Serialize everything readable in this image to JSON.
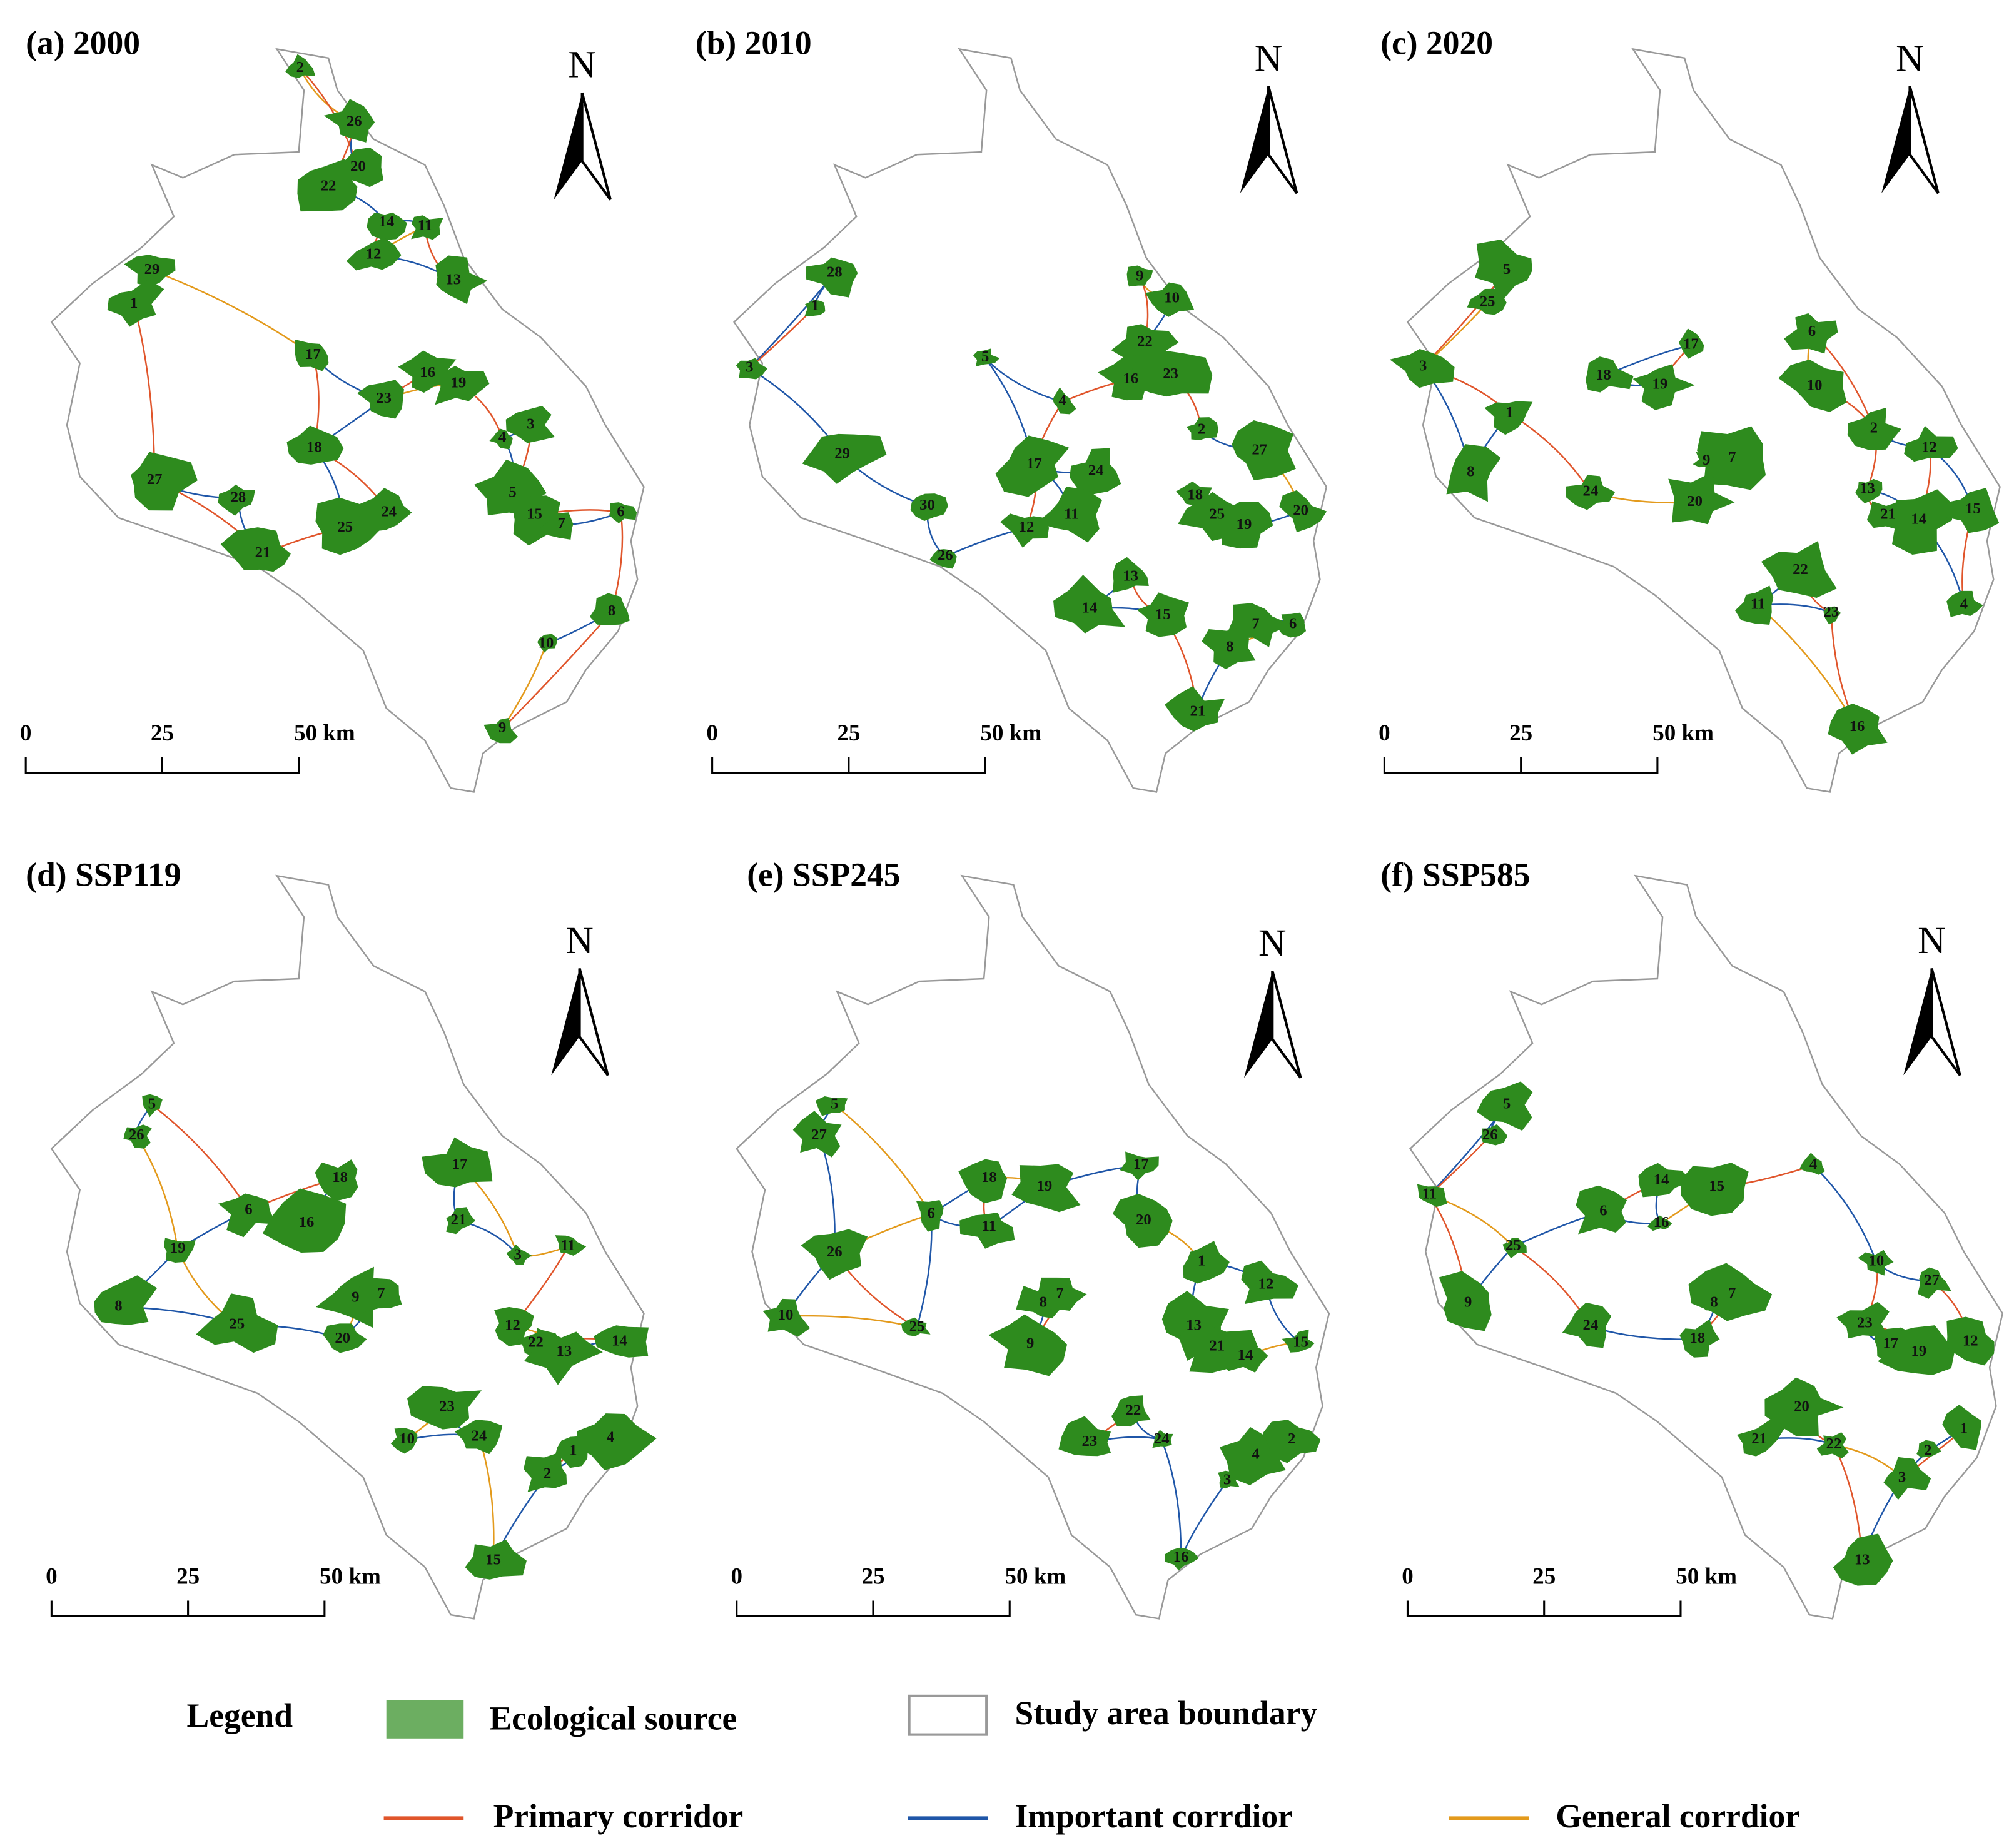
{
  "panels": [
    {
      "title": "(a) 2000",
      "nodes": [
        29,
        1,
        2,
        26,
        20,
        22,
        14,
        11,
        12,
        13,
        17,
        16,
        19,
        23,
        18,
        3,
        4,
        5,
        15,
        7,
        6,
        27,
        28,
        25,
        24,
        21,
        8,
        10,
        9
      ]
    },
    {
      "title": "(b) 2010",
      "nodes": [
        28,
        1,
        9,
        10,
        22,
        16,
        23,
        3,
        5,
        4,
        2,
        27,
        29,
        17,
        24,
        30,
        18,
        25,
        19,
        20,
        11,
        12,
        26,
        13,
        14,
        15,
        7,
        6,
        8,
        21
      ]
    },
    {
      "title": "(c) 2020",
      "nodes": [
        5,
        25,
        17,
        6,
        3,
        18,
        19,
        10,
        1,
        2,
        12,
        9,
        7,
        8,
        24,
        13,
        20,
        21,
        14,
        15,
        22,
        11,
        23,
        4,
        16
      ]
    },
    {
      "title": "(d) SSP119",
      "nodes": [
        5,
        26,
        18,
        17,
        6,
        16,
        21,
        3,
        11,
        19,
        8,
        25,
        9,
        7,
        12,
        22,
        13,
        14,
        20,
        23,
        24,
        10,
        1,
        4,
        2,
        15
      ]
    },
    {
      "title": "(e) SSP245",
      "nodes": [
        5,
        27,
        18,
        19,
        17,
        6,
        11,
        20,
        1,
        12,
        26,
        10,
        8,
        7,
        25,
        13,
        21,
        14,
        15,
        9,
        22,
        24,
        23,
        4,
        2,
        3,
        16
      ]
    },
    {
      "title": "(f) SSP585",
      "nodes": [
        5,
        26,
        4,
        14,
        15,
        6,
        16,
        11,
        25,
        10,
        27,
        9,
        8,
        7,
        24,
        23,
        17,
        19,
        12,
        18,
        20,
        21,
        22,
        3,
        2,
        1,
        13
      ]
    }
  ],
  "scale_bar": [
    "0",
    "25",
    "50 km"
  ],
  "north": "N",
  "legend": {
    "title": "Legend",
    "items": [
      {
        "label": "Ecological source",
        "color": "#2e8b1e"
      },
      {
        "label": "Study area boundary",
        "color": "#999999"
      },
      {
        "label": "Primary corridor",
        "color": "#e0552b"
      },
      {
        "label": "Important corrdior",
        "color": "#1f56a8"
      },
      {
        "label": "General corrdior",
        "color": "#e39a1c"
      }
    ]
  }
}
